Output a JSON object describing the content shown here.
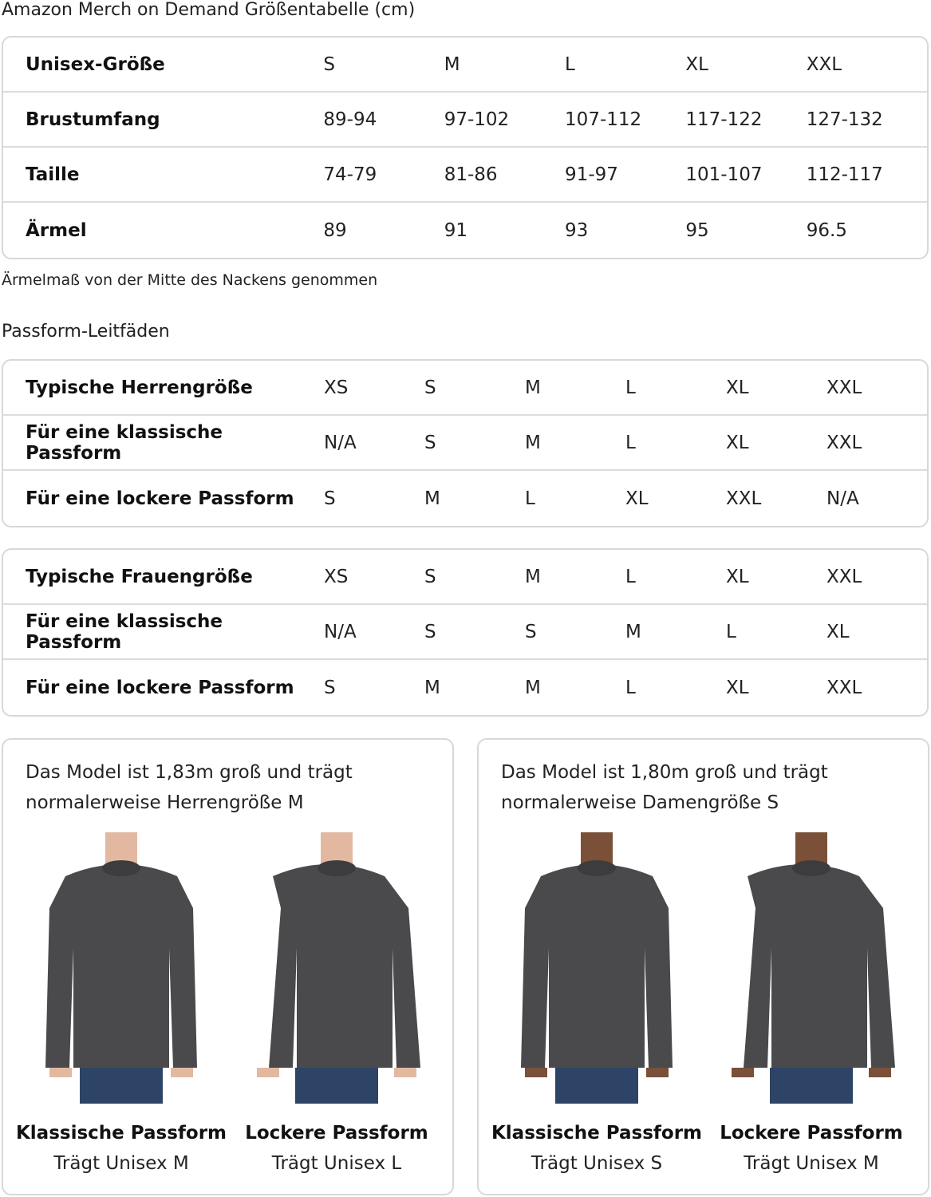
{
  "title": "Amazon Merch on Demand Größentabelle (cm)",
  "size_table": {
    "header": {
      "label": "Unisex-Größe",
      "values": [
        "S",
        "M",
        "L",
        "XL",
        "XXL"
      ]
    },
    "rows": [
      {
        "label": "Brustumfang",
        "values": [
          "89-94",
          "97-102",
          "107-112",
          "117-122",
          "127-132"
        ]
      },
      {
        "label": "Taille",
        "values": [
          "74-79",
          "81-86",
          "91-97",
          "101-107",
          "112-117"
        ]
      },
      {
        "label": "Ärmel",
        "values": [
          "89",
          "91",
          "93",
          "95",
          "96.5"
        ]
      }
    ]
  },
  "note": "Ärmelmaß von der Mitte des Nackens genommen",
  "fit_heading": "Passform-Leitfäden",
  "men_table": {
    "rows": [
      {
        "label": "Typische Herrengröße",
        "values": [
          "XS",
          "S",
          "M",
          "L",
          "XL",
          "XXL"
        ]
      },
      {
        "label": "Für eine klassische Passform",
        "values": [
          "N/A",
          "S",
          "M",
          "L",
          "XL",
          "XXL"
        ]
      },
      {
        "label": "Für eine lockere Passform",
        "values": [
          "S",
          "M",
          "L",
          "XL",
          "XXL",
          "N/A"
        ]
      }
    ]
  },
  "women_table": {
    "rows": [
      {
        "label": "Typische Frauengröße",
        "values": [
          "XS",
          "S",
          "M",
          "L",
          "XL",
          "XXL"
        ]
      },
      {
        "label": "Für eine klassische Passform",
        "values": [
          "N/A",
          "S",
          "S",
          "M",
          "L",
          "XL"
        ]
      },
      {
        "label": "Für eine lockere Passform",
        "values": [
          "S",
          "M",
          "M",
          "L",
          "XL",
          "XXL"
        ]
      }
    ]
  },
  "cards": [
    {
      "desc": "Das Model ist 1,83m groß und trägt normalerweise Herrengröße M",
      "photos": [
        {
          "title": "Klassische Passform",
          "sub": "Trägt Unisex M"
        },
        {
          "title": "Lockere Passform",
          "sub": "Trägt Unisex L"
        }
      ]
    },
    {
      "desc": "Das Model ist 1,80m groß und trägt normalerweise Damengröße S",
      "photos": [
        {
          "title": "Klassische Passform",
          "sub": "Trägt Unisex S"
        },
        {
          "title": "Lockere Passform",
          "sub": "Trägt Unisex M"
        }
      ]
    }
  ],
  "colors": {
    "sweatshirt": "#4a4a4c",
    "jeans": "#2e4466",
    "border": "#d8d8d8"
  }
}
